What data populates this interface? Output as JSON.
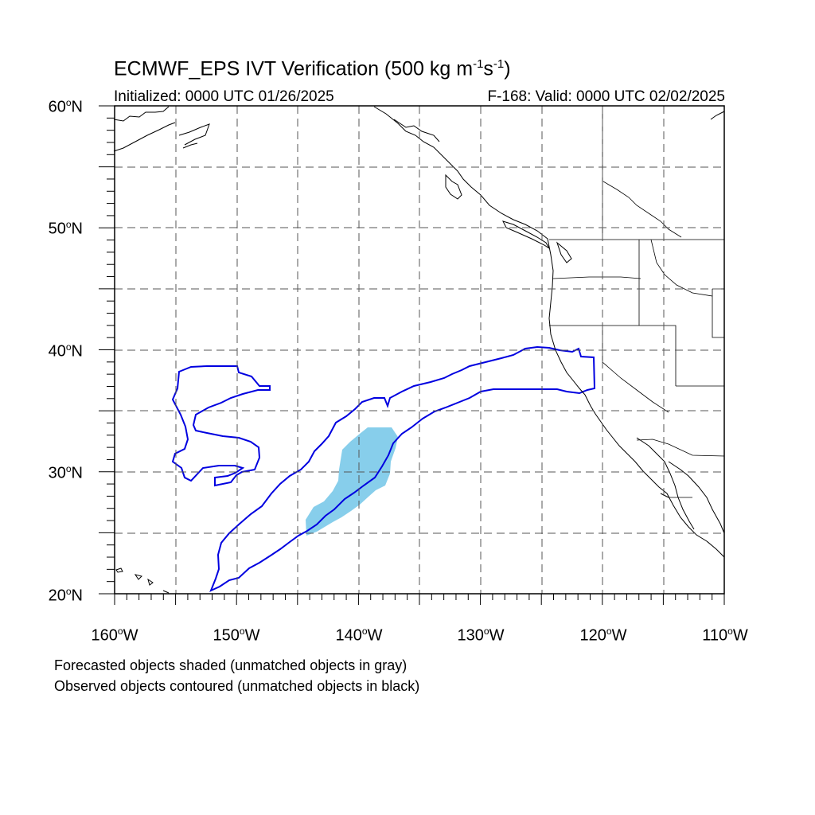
{
  "title": {
    "main": "ECMWF_EPS IVT Verification (500 kg m",
    "sup1": "-1",
    "mid": "s",
    "sup2": "-1",
    "end": ")"
  },
  "initialized": "Initialized: 0000 UTC 01/26/2025",
  "valid": "F-168: Valid: 0000 UTC 02/02/2025",
  "lat_labels": [
    {
      "text": "60",
      "deg": "o",
      "hemi": "N"
    },
    {
      "text": "50",
      "deg": "o",
      "hemi": "N"
    },
    {
      "text": "40",
      "deg": "o",
      "hemi": "N"
    },
    {
      "text": "30",
      "deg": "o",
      "hemi": "N"
    },
    {
      "text": "20",
      "deg": "o",
      "hemi": "N"
    }
  ],
  "lon_labels": [
    {
      "text": "160",
      "deg": "o",
      "hemi": "W"
    },
    {
      "text": "150",
      "deg": "o",
      "hemi": "W"
    },
    {
      "text": "140",
      "deg": "o",
      "hemi": "W"
    },
    {
      "text": "130",
      "deg": "o",
      "hemi": "W"
    },
    {
      "text": "120",
      "deg": "o",
      "hemi": "W"
    },
    {
      "text": "110",
      "deg": "o",
      "hemi": "W"
    }
  ],
  "notes": {
    "forecast": "Forecasted objects shaded (unmatched objects in gray)",
    "observed": "Observed objects contoured (unmatched objects in black)"
  },
  "colors": {
    "forecast_fill": "#87ceeb",
    "observed_contour": "#0000e0",
    "coast": "#000000",
    "grid": "#555555"
  },
  "map": {
    "projection": "cylindrical equidistant",
    "lon_range": [
      -160,
      -110
    ],
    "lat_range": [
      20,
      60
    ],
    "grid_spacing_deg": 5
  }
}
